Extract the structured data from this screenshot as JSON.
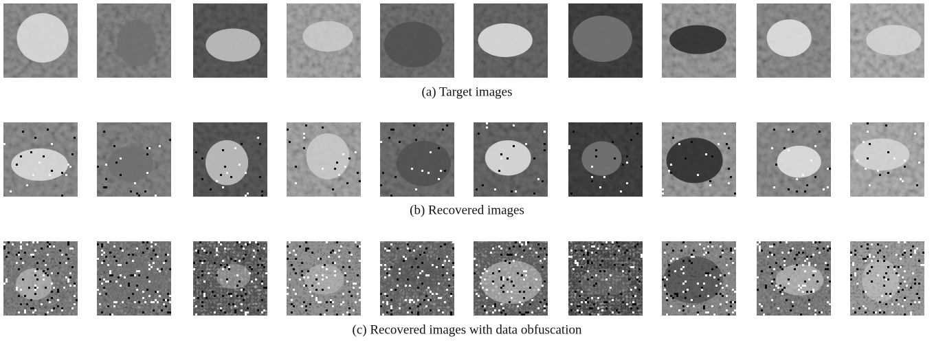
{
  "figure": {
    "rows": [
      {
        "caption": "(a) Target images"
      },
      {
        "caption": "(b) Recovered images"
      },
      {
        "caption": "(c) Recovered images with data obfuscation"
      }
    ]
  }
}
